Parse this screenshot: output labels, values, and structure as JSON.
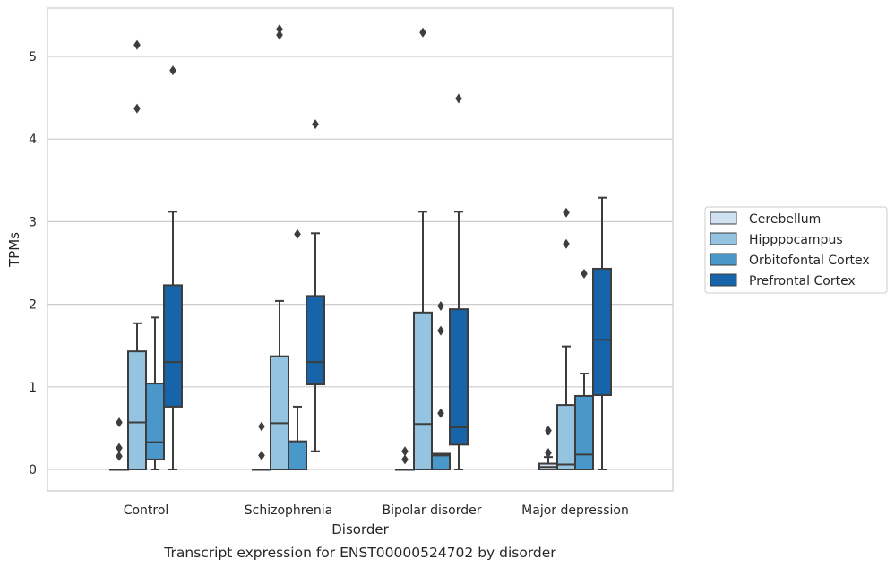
{
  "chart_data": {
    "type": "box",
    "title": "",
    "caption": "Transcript expression for ENST00000524702 by disorder",
    "xlabel": "Disorder",
    "ylabel": "TPMs",
    "ylim": [
      -0.26,
      5.6
    ],
    "yticks": [
      0,
      1,
      2,
      3,
      4,
      5
    ],
    "grid": true,
    "legend_position": "right",
    "categories": [
      "Control",
      "Schizophrenia",
      "Bipolar disorder",
      "Major depression"
    ],
    "series": [
      {
        "name": "Cerebellum",
        "color": "#d0e1f2",
        "boxes": [
          {
            "whisker_low": 0,
            "q1": 0,
            "median": 0,
            "q3": 0,
            "whisker_high": 0,
            "outliers": [
              0.16,
              0.26,
              0.57
            ]
          },
          {
            "whisker_low": 0,
            "q1": 0,
            "median": 0,
            "q3": 0,
            "whisker_high": 0,
            "outliers": [
              0.17,
              0.52
            ]
          },
          {
            "whisker_low": 0,
            "q1": 0,
            "median": 0,
            "q3": 0,
            "whisker_high": 0,
            "outliers": [
              0.12,
              0.22
            ]
          },
          {
            "whisker_low": 0,
            "q1": 0,
            "median": 0.03,
            "q3": 0.07,
            "whisker_high": 0.15,
            "outliers": [
              0.2,
              0.47
            ]
          }
        ]
      },
      {
        "name": "Hipppocampus",
        "color": "#94c4df",
        "boxes": [
          {
            "whisker_low": 0,
            "q1": 0,
            "median": 0.57,
            "q3": 1.43,
            "whisker_high": 1.77,
            "outliers": [
              4.37,
              5.14
            ]
          },
          {
            "whisker_low": 0,
            "q1": 0,
            "median": 0.56,
            "q3": 1.37,
            "whisker_high": 2.04,
            "outliers": [
              5.26,
              5.33
            ]
          },
          {
            "whisker_low": 0,
            "q1": 0,
            "median": 0.55,
            "q3": 1.9,
            "whisker_high": 3.12,
            "outliers": [
              5.29
            ]
          },
          {
            "whisker_low": 0,
            "q1": 0,
            "median": 0.06,
            "q3": 0.78,
            "whisker_high": 1.49,
            "outliers": [
              2.73,
              3.11
            ]
          }
        ]
      },
      {
        "name": "Orbitofontal Cortex",
        "color": "#4a98c9",
        "boxes": [
          {
            "whisker_low": 0,
            "q1": 0.12,
            "median": 0.33,
            "q3": 1.04,
            "whisker_high": 1.84,
            "outliers": []
          },
          {
            "whisker_low": 0,
            "q1": 0,
            "median": 0,
            "q3": 0.34,
            "whisker_high": 0.76,
            "outliers": [
              2.85
            ]
          },
          {
            "whisker_low": 0,
            "q1": 0,
            "median": 0.17,
            "q3": 0.19,
            "whisker_high": 0.19,
            "outliers": [
              0.68,
              1.68,
              1.98
            ]
          },
          {
            "whisker_low": 0,
            "q1": 0,
            "median": 0.18,
            "q3": 0.89,
            "whisker_high": 1.16,
            "outliers": [
              2.37
            ]
          }
        ]
      },
      {
        "name": "Prefrontal Cortex",
        "color": "#1764ab",
        "boxes": [
          {
            "whisker_low": 0,
            "q1": 0.76,
            "median": 1.3,
            "q3": 2.23,
            "whisker_high": 3.12,
            "outliers": [
              4.83
            ]
          },
          {
            "whisker_low": 0.22,
            "q1": 1.03,
            "median": 1.3,
            "q3": 2.1,
            "whisker_high": 2.86,
            "outliers": [
              4.18
            ]
          },
          {
            "whisker_low": 0,
            "q1": 0.3,
            "median": 0.51,
            "q3": 1.94,
            "whisker_high": 3.12,
            "outliers": [
              4.49
            ]
          },
          {
            "whisker_low": 0,
            "q1": 0.9,
            "median": 1.57,
            "q3": 2.43,
            "whisker_high": 3.29,
            "outliers": []
          }
        ]
      }
    ],
    "style": {
      "grid_color": "#cccccc",
      "spine_color": "#cccccc",
      "line_color": "#3d3d3d"
    }
  }
}
